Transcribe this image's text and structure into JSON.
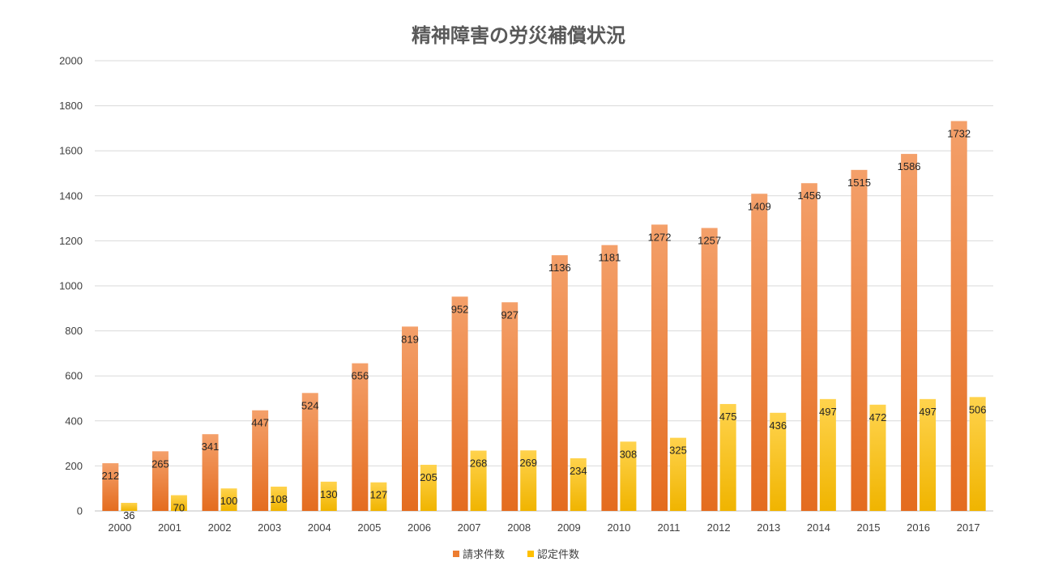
{
  "chart_data": {
    "type": "bar",
    "title": "精神障害の労災補償状況",
    "categories": [
      "2000",
      "2001",
      "2002",
      "2003",
      "2004",
      "2005",
      "2006",
      "2007",
      "2008",
      "2009",
      "2010",
      "2011",
      "2012",
      "2013",
      "2014",
      "2015",
      "2016",
      "2017"
    ],
    "series": [
      {
        "name": "請求件数",
        "color": "#ED7D31",
        "values": [
          212,
          265,
          341,
          447,
          524,
          656,
          819,
          952,
          927,
          1136,
          1181,
          1272,
          1257,
          1409,
          1456,
          1515,
          1586,
          1732
        ]
      },
      {
        "name": "認定件数",
        "color": "#FFC000",
        "values": [
          36,
          70,
          100,
          108,
          130,
          127,
          205,
          268,
          269,
          234,
          308,
          325,
          475,
          436,
          497,
          472,
          497,
          506
        ]
      }
    ],
    "ylim": [
      0,
      2000
    ],
    "yticks": [
      0,
      200,
      400,
      600,
      800,
      1000,
      1200,
      1400,
      1600,
      1800,
      2000
    ],
    "grid": true,
    "legend_position": "bottom",
    "data_labels": true
  }
}
